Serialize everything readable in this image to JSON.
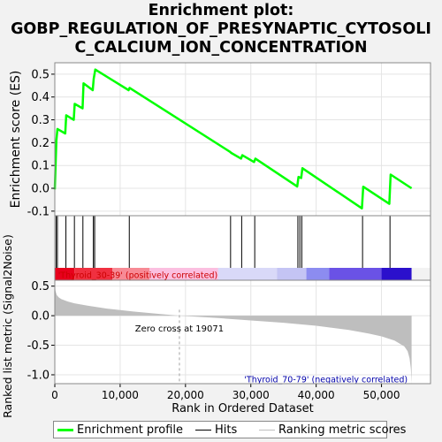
{
  "title_lines": [
    "Enrichment plot:",
    "GOBP_REGULATION_OF_PRESYNAPTIC_CYTOSOLI",
    "C_CALCIUM_ION_CONCENTRATION"
  ],
  "colors": {
    "es_line": "#00ff00",
    "hits": "#000000",
    "metric_fill": "#bebebe",
    "positive_label": "#cc0000",
    "negative_label": "#0000aa",
    "zero_cross_line": "#a0a0a0"
  },
  "chart_data": {
    "type": "line",
    "top_panel": {
      "ylabel": "Enrichment score (ES)",
      "ylim": [
        -0.12,
        0.55
      ],
      "yticks": [
        -0.1,
        0.0,
        0.1,
        0.2,
        0.3,
        0.4,
        0.5
      ],
      "ytick_labels": [
        "-0.1",
        "0.0",
        "0.1",
        "0.2",
        "0.3",
        "0.4",
        "0.5"
      ],
      "series": [
        {
          "x": [
            0,
            150,
            250,
            400,
            1600,
            1750,
            2900,
            3050,
            4250,
            4400,
            5800,
            5950,
            6200,
            11300,
            11450,
            26800,
            27000,
            28500,
            28700,
            30500,
            30700,
            37100,
            37300,
            37700,
            37900,
            47000,
            47200,
            51200,
            51400,
            54600
          ],
          "y": [
            -0.005,
            0.13,
            0.21,
            0.26,
            0.24,
            0.32,
            0.3,
            0.37,
            0.35,
            0.46,
            0.43,
            0.48,
            0.52,
            0.43,
            0.44,
            0.16,
            0.155,
            0.13,
            0.145,
            0.115,
            0.13,
            0.008,
            0.05,
            0.045,
            0.088,
            -0.088,
            0.007,
            -0.068,
            0.06,
            0.0
          ]
        }
      ]
    },
    "hits": [
      200,
      400,
      1700,
      3000,
      4300,
      5900,
      6100,
      11400,
      26900,
      28600,
      30600,
      37200,
      37500,
      37800,
      47100,
      51300
    ],
    "ranking_bar": {
      "segments": [
        {
          "start": 0,
          "end": 3000,
          "color": "#e8001c"
        },
        {
          "start": 3000,
          "end": 8800,
          "color": "#f03040"
        },
        {
          "start": 8800,
          "end": 14500,
          "color": "#f78a95"
        },
        {
          "start": 14500,
          "end": 25000,
          "color": "#fbbfe0"
        },
        {
          "start": 25000,
          "end": 34000,
          "color": "#d9d9f8"
        },
        {
          "start": 34000,
          "end": 38500,
          "color": "#c4c4f4"
        },
        {
          "start": 38500,
          "end": 42000,
          "color": "#8c8cf0"
        },
        {
          "start": 42000,
          "end": 50000,
          "color": "#6a52e6"
        },
        {
          "start": 50000,
          "end": 54600,
          "color": "#2b10cc"
        }
      ]
    },
    "bottom_panel": {
      "ylabel": "Ranked list metric (Signal2Noise)",
      "xlabel": "Rank in Ordered Dataset",
      "ylim": [
        -1.15,
        0.6
      ],
      "yticks": [
        -1.0,
        -0.5,
        0.0,
        0.5
      ],
      "ytick_labels": [
        "-1.0",
        "-0.5",
        "0.0",
        "0.5"
      ],
      "xlim": [
        0,
        57500
      ],
      "xticks": [
        0,
        10000,
        20000,
        30000,
        40000,
        50000
      ],
      "xtick_labels": [
        "0",
        "10,000",
        "20,000",
        "30,000",
        "40,000",
        "50,000"
      ],
      "metric_curve": {
        "x": [
          0,
          100,
          300,
          600,
          1000,
          2000,
          3000,
          5000,
          8000,
          12000,
          16000,
          19071,
          25000,
          30000,
          35000,
          40000,
          45000,
          48000,
          50000,
          52000,
          53500,
          54000,
          54300,
          54500,
          54600
        ],
        "y": [
          0.55,
          0.42,
          0.35,
          0.31,
          0.28,
          0.24,
          0.21,
          0.17,
          0.12,
          0.07,
          0.03,
          0.0,
          -0.04,
          -0.08,
          -0.12,
          -0.17,
          -0.24,
          -0.3,
          -0.35,
          -0.42,
          -0.52,
          -0.6,
          -0.72,
          -0.9,
          -1.15
        ]
      },
      "zero_cross": 19071,
      "zero_cross_label": "Zero cross at 19071",
      "positive_label": "'Thyroid_30-39' (positively correlated)",
      "negative_label": "'Thyroid_70-79' (negatively correlated)"
    }
  },
  "legend": {
    "items": [
      {
        "label": "Enrichment profile"
      },
      {
        "label": "Hits"
      },
      {
        "label": "Ranking metric scores"
      }
    ]
  }
}
